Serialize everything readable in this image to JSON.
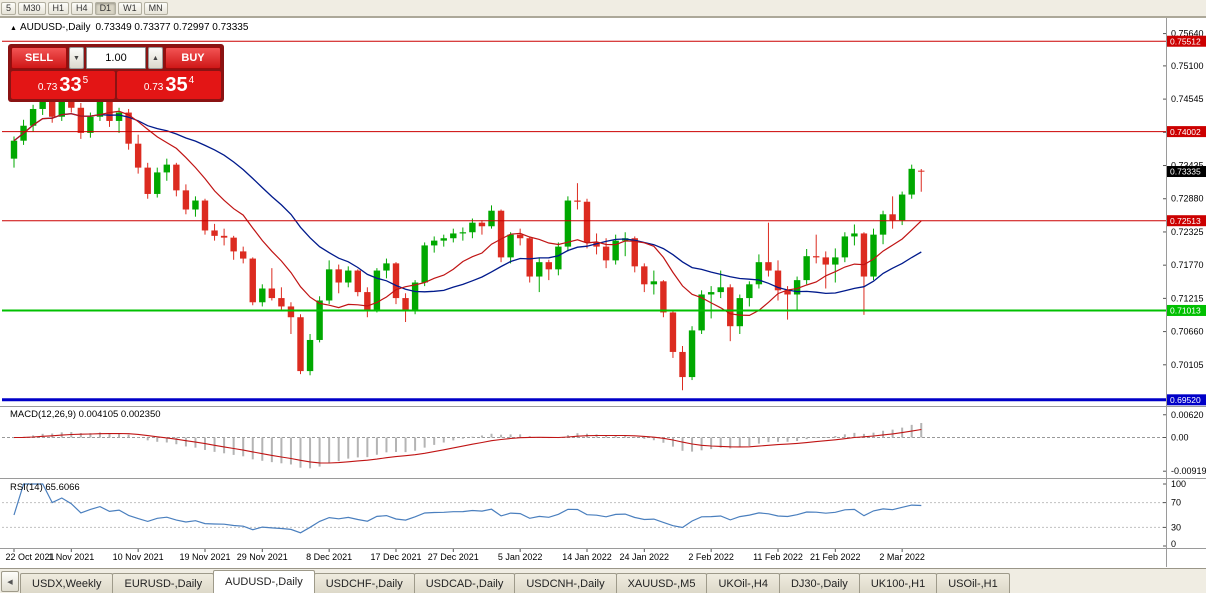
{
  "icons": {
    "header_marker": "▲",
    "spin_down": "▼",
    "spin_up": "▲",
    "tabs_scroll_left": "◀"
  },
  "colors": {
    "candle_up": "#00a800",
    "candle_down": "#dc2b20",
    "ma_fast": "#c01414",
    "ma_slow": "#001a8c",
    "macd_hist": "#b4b4b4",
    "macd_signal": "#c01414",
    "rsi_line": "#4a7fbe"
  },
  "toolbar": {
    "timeframes": [
      {
        "label": "5",
        "active": false
      },
      {
        "label": "M30",
        "active": false
      },
      {
        "label": "H1",
        "active": false
      },
      {
        "label": "H4",
        "active": false
      },
      {
        "label": "D1",
        "active": true
      },
      {
        "label": "W1",
        "active": false
      },
      {
        "label": "MN",
        "active": false
      }
    ]
  },
  "chart_header": {
    "symbol": "AUDUSD-,Daily",
    "ohlc": "0.73349 0.73377 0.72997 0.73335"
  },
  "trade_panel": {
    "sell_label": "SELL",
    "buy_label": "BUY",
    "lot_value": "1.00",
    "sell_price_small": "0.73",
    "sell_price_big": "33",
    "sell_price_sup": "5",
    "buy_price_small": "0.73",
    "buy_price_big": "35",
    "buy_price_sup": "4"
  },
  "price_axis": {
    "ticks": [
      {
        "text": "0.75640",
        "value": 0.7564
      },
      {
        "text": "0.75100",
        "value": 0.751
      },
      {
        "text": "0.74545",
        "value": 0.74545
      },
      {
        "text": "0.73990",
        "value": 0.7399
      },
      {
        "text": "0.73435",
        "value": 0.73435
      },
      {
        "text": "0.72880",
        "value": 0.7288
      },
      {
        "text": "0.72325",
        "value": 0.72325
      },
      {
        "text": "0.71770",
        "value": 0.7177
      },
      {
        "text": "0.71215",
        "value": 0.71215
      },
      {
        "text": "0.70660",
        "value": 0.7066
      },
      {
        "text": "0.70105",
        "value": 0.70105
      }
    ],
    "levels": [
      {
        "text": "0.75512",
        "value": 0.75512,
        "color": "#cc0000",
        "width": 1
      },
      {
        "text": "0.74002",
        "value": 0.74002,
        "color": "#cc0000",
        "width": 1
      },
      {
        "text": "0.72513",
        "value": 0.72513,
        "color": "#cc0000",
        "width": 1
      },
      {
        "text": "0.71013",
        "value": 0.71013,
        "color": "#00c000",
        "width": 2
      },
      {
        "text": "0.69520",
        "value": 0.6952,
        "color": "#0000c8",
        "width": 3
      }
    ],
    "current": {
      "text": "0.73335",
      "value": 0.73335,
      "color": "#000000"
    }
  },
  "indicators": {
    "macd": {
      "label": "MACD(12,26,9) 0.004105 0.002350",
      "axis": [
        {
          "text": "0.00620",
          "value": 0.0062
        },
        {
          "text": "0.00",
          "value": 0
        },
        {
          "text": "-0.00919",
          "value": -0.00919
        }
      ]
    },
    "rsi": {
      "label": "RSI(14) 65.6066",
      "levels": [
        70,
        30
      ],
      "axis": [
        {
          "text": "100",
          "value": 100
        },
        {
          "text": "70",
          "value": 70
        },
        {
          "text": "30",
          "value": 30
        },
        {
          "text": "0",
          "value": 0
        }
      ]
    }
  },
  "dates": [
    {
      "text": "22 Oct 2021",
      "i": 0
    },
    {
      "text": "1 Nov 2021",
      "i": 6
    },
    {
      "text": "10 Nov 2021",
      "i": 13
    },
    {
      "text": "19 Nov 2021",
      "i": 20
    },
    {
      "text": "29 Nov 2021",
      "i": 26
    },
    {
      "text": "8 Dec 2021",
      "i": 33
    },
    {
      "text": "17 Dec 2021",
      "i": 40
    },
    {
      "text": "27 Dec 2021",
      "i": 46
    },
    {
      "text": "5 Jan 2022",
      "i": 53
    },
    {
      "text": "14 Jan 2022",
      "i": 60
    },
    {
      "text": "24 Jan 2022",
      "i": 66
    },
    {
      "text": "2 Feb 2022",
      "i": 73
    },
    {
      "text": "11 Feb 2022",
      "i": 80
    },
    {
      "text": "21 Feb 2022",
      "i": 86
    },
    {
      "text": "2 Mar 2022",
      "i": 93
    }
  ],
  "tabs": [
    {
      "label": "USDX,Weekly",
      "active": false
    },
    {
      "label": "EURUSD-,Daily",
      "active": false
    },
    {
      "label": "AUDUSD-,Daily",
      "active": true
    },
    {
      "label": "USDCHF-,Daily",
      "active": false
    },
    {
      "label": "USDCAD-,Daily",
      "active": false
    },
    {
      "label": "USDCNH-,Daily",
      "active": false
    },
    {
      "label": "XAUUSD-,M5",
      "active": false
    },
    {
      "label": "UKOil-,H4",
      "active": false
    },
    {
      "label": "DJ30-,Daily",
      "active": false
    },
    {
      "label": "UK100-,H1",
      "active": false
    },
    {
      "label": "USOil-,H1",
      "active": false
    }
  ],
  "chart_data": {
    "type": "candlestick",
    "symbol": "AUDUSD-",
    "timeframe": "Daily",
    "ylim": [
      0.6945,
      0.758
    ],
    "ma_fast_period": 10,
    "ma_slow_period": 21,
    "macd": {
      "fast": 12,
      "slow": 26,
      "signal": 9,
      "last_macd": 0.004105,
      "last_signal": 0.00235,
      "ylim": [
        -0.0105,
        0.0075
      ]
    },
    "rsi": {
      "period": 14,
      "last": 65.6066,
      "ylim": [
        0,
        100
      ]
    },
    "levels": [
      0.75512,
      0.74002,
      0.72513,
      0.71013,
      0.6952
    ],
    "candles": [
      [
        0.7355,
        0.7392,
        0.734,
        0.7385
      ],
      [
        0.7385,
        0.742,
        0.7378,
        0.741
      ],
      [
        0.741,
        0.7445,
        0.74,
        0.7438
      ],
      [
        0.7438,
        0.7468,
        0.7428,
        0.7455
      ],
      [
        0.7455,
        0.7472,
        0.7415,
        0.7425
      ],
      [
        0.7425,
        0.7465,
        0.7418,
        0.7458
      ],
      [
        0.7458,
        0.747,
        0.7432,
        0.744
      ],
      [
        0.744,
        0.7448,
        0.7388,
        0.7398
      ],
      [
        0.7398,
        0.7432,
        0.739,
        0.7425
      ],
      [
        0.7425,
        0.7462,
        0.7418,
        0.7452
      ],
      [
        0.7452,
        0.746,
        0.7408,
        0.7418
      ],
      [
        0.7418,
        0.744,
        0.7398,
        0.7432
      ],
      [
        0.7432,
        0.7438,
        0.737,
        0.738
      ],
      [
        0.738,
        0.7395,
        0.733,
        0.734
      ],
      [
        0.734,
        0.7348,
        0.7288,
        0.7296
      ],
      [
        0.7296,
        0.734,
        0.729,
        0.7332
      ],
      [
        0.7332,
        0.7355,
        0.7318,
        0.7345
      ],
      [
        0.7345,
        0.7348,
        0.7292,
        0.7302
      ],
      [
        0.7302,
        0.7312,
        0.7262,
        0.727
      ],
      [
        0.727,
        0.7292,
        0.7258,
        0.7285
      ],
      [
        0.7285,
        0.7288,
        0.7228,
        0.7235
      ],
      [
        0.7235,
        0.7246,
        0.7218,
        0.7226
      ],
      [
        0.7226,
        0.7238,
        0.721,
        0.7223
      ],
      [
        0.7223,
        0.7226,
        0.7186,
        0.72
      ],
      [
        0.72,
        0.7208,
        0.718,
        0.7188
      ],
      [
        0.7188,
        0.719,
        0.711,
        0.7115
      ],
      [
        0.7115,
        0.7145,
        0.7108,
        0.7138
      ],
      [
        0.7138,
        0.7172,
        0.7118,
        0.7122
      ],
      [
        0.7122,
        0.714,
        0.71,
        0.7108
      ],
      [
        0.7108,
        0.7115,
        0.7062,
        0.709
      ],
      [
        0.709,
        0.7095,
        0.6995,
        0.7
      ],
      [
        0.7,
        0.7062,
        0.6993,
        0.7052
      ],
      [
        0.7052,
        0.7125,
        0.7048,
        0.7118
      ],
      [
        0.7118,
        0.7185,
        0.7112,
        0.717
      ],
      [
        0.717,
        0.7178,
        0.713,
        0.7148
      ],
      [
        0.7148,
        0.7175,
        0.714,
        0.7168
      ],
      [
        0.7168,
        0.717,
        0.7125,
        0.7132
      ],
      [
        0.7132,
        0.714,
        0.709,
        0.7102
      ],
      [
        0.7102,
        0.7172,
        0.7098,
        0.7168
      ],
      [
        0.7168,
        0.7188,
        0.7155,
        0.718
      ],
      [
        0.718,
        0.7182,
        0.7112,
        0.7122
      ],
      [
        0.7122,
        0.713,
        0.7082,
        0.7102
      ],
      [
        0.7102,
        0.7152,
        0.7095,
        0.7148
      ],
      [
        0.7148,
        0.7215,
        0.7142,
        0.721
      ],
      [
        0.721,
        0.7225,
        0.7198,
        0.7218
      ],
      [
        0.7218,
        0.7228,
        0.7208,
        0.7222
      ],
      [
        0.7222,
        0.7238,
        0.7215,
        0.723
      ],
      [
        0.723,
        0.724,
        0.7218,
        0.7232
      ],
      [
        0.7232,
        0.7255,
        0.7222,
        0.7248
      ],
      [
        0.7248,
        0.7252,
        0.7228,
        0.7242
      ],
      [
        0.7242,
        0.7277,
        0.7238,
        0.7268
      ],
      [
        0.7268,
        0.727,
        0.7182,
        0.719
      ],
      [
        0.719,
        0.7232,
        0.718,
        0.7228
      ],
      [
        0.7228,
        0.7238,
        0.721,
        0.7222
      ],
      [
        0.7222,
        0.7225,
        0.7148,
        0.7158
      ],
      [
        0.7158,
        0.719,
        0.7132,
        0.7182
      ],
      [
        0.7182,
        0.7186,
        0.7152,
        0.717
      ],
      [
        0.717,
        0.7215,
        0.716,
        0.7208
      ],
      [
        0.7208,
        0.7292,
        0.72,
        0.7285
      ],
      [
        0.7285,
        0.7314,
        0.727,
        0.7283
      ],
      [
        0.7283,
        0.7288,
        0.7205,
        0.7215
      ],
      [
        0.7215,
        0.723,
        0.7195,
        0.7208
      ],
      [
        0.7208,
        0.7222,
        0.7172,
        0.7185
      ],
      [
        0.7185,
        0.7228,
        0.7178,
        0.7218
      ],
      [
        0.7218,
        0.7232,
        0.7192,
        0.7222
      ],
      [
        0.7222,
        0.7225,
        0.7165,
        0.7175
      ],
      [
        0.7175,
        0.718,
        0.7132,
        0.7145
      ],
      [
        0.7145,
        0.7168,
        0.7128,
        0.715
      ],
      [
        0.715,
        0.7152,
        0.709,
        0.7098
      ],
      [
        0.7098,
        0.71,
        0.7022,
        0.7032
      ],
      [
        0.7032,
        0.7042,
        0.6968,
        0.699
      ],
      [
        0.699,
        0.7075,
        0.6985,
        0.7068
      ],
      [
        0.7068,
        0.7135,
        0.7062,
        0.7128
      ],
      [
        0.7128,
        0.7142,
        0.7088,
        0.7132
      ],
      [
        0.7132,
        0.7168,
        0.7122,
        0.714
      ],
      [
        0.714,
        0.7145,
        0.705,
        0.7075
      ],
      [
        0.7075,
        0.7128,
        0.7062,
        0.7122
      ],
      [
        0.7122,
        0.715,
        0.7108,
        0.7145
      ],
      [
        0.7145,
        0.7195,
        0.7138,
        0.7182
      ],
      [
        0.7182,
        0.7248,
        0.7158,
        0.7168
      ],
      [
        0.7168,
        0.7185,
        0.7118,
        0.7135
      ],
      [
        0.7135,
        0.7142,
        0.7086,
        0.7128
      ],
      [
        0.7128,
        0.7158,
        0.71,
        0.7152
      ],
      [
        0.7152,
        0.7204,
        0.7145,
        0.7192
      ],
      [
        0.7192,
        0.7228,
        0.718,
        0.719
      ],
      [
        0.719,
        0.72,
        0.7138,
        0.7178
      ],
      [
        0.7178,
        0.7205,
        0.7148,
        0.719
      ],
      [
        0.719,
        0.7232,
        0.7182,
        0.7225
      ],
      [
        0.7225,
        0.7245,
        0.721,
        0.723
      ],
      [
        0.723,
        0.7232,
        0.7094,
        0.7158
      ],
      [
        0.7158,
        0.7238,
        0.7152,
        0.7228
      ],
      [
        0.7228,
        0.7268,
        0.7212,
        0.7262
      ],
      [
        0.7262,
        0.7292,
        0.7238,
        0.7252
      ],
      [
        0.7252,
        0.73,
        0.7244,
        0.7295
      ],
      [
        0.7295,
        0.7345,
        0.7288,
        0.7338
      ],
      [
        0.73349,
        0.73377,
        0.72997,
        0.73335
      ]
    ]
  }
}
